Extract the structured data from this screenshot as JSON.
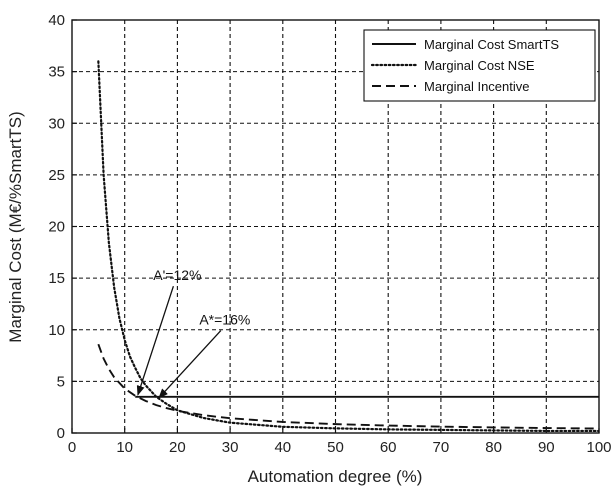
{
  "chart_data": {
    "type": "line",
    "title": "",
    "xlabel": "Automation degree (%)",
    "ylabel": "Marginal Cost (M€/%SmartTS)",
    "xlim": [
      0,
      100
    ],
    "ylim": [
      0,
      40
    ],
    "xticks": [
      0,
      10,
      20,
      30,
      40,
      50,
      60,
      70,
      80,
      90,
      100
    ],
    "yticks": [
      0,
      5,
      10,
      15,
      20,
      25,
      30,
      35,
      40
    ],
    "grid": true,
    "legend_position": "top-right",
    "series": [
      {
        "name": "Marginal Cost SmartTS",
        "style": "solid",
        "x": [
          12,
          100
        ],
        "y": [
          3.5,
          3.5
        ]
      },
      {
        "name": "Marginal Cost NSE",
        "style": "dotted",
        "x": [
          5,
          6,
          7,
          8,
          9,
          10,
          11,
          12,
          13,
          14,
          16,
          18,
          20,
          25,
          30,
          40,
          50,
          60,
          70,
          80,
          90,
          100
        ],
        "y": [
          36,
          25,
          18.4,
          14.1,
          11.1,
          9.0,
          7.4,
          6.3,
          5.3,
          4.6,
          3.5,
          2.8,
          2.2,
          1.45,
          1.0,
          0.6,
          0.45,
          0.35,
          0.3,
          0.25,
          0.2,
          0.2
        ]
      },
      {
        "name": "Marginal Incentive",
        "style": "dashed",
        "x": [
          5,
          6,
          7,
          8,
          10,
          12,
          14,
          16,
          18,
          20,
          25,
          30,
          40,
          50,
          60,
          70,
          80,
          90,
          100
        ],
        "y": [
          8.6,
          7.2,
          6.2,
          5.4,
          4.3,
          3.6,
          3.1,
          2.7,
          2.4,
          2.15,
          1.72,
          1.43,
          1.07,
          0.86,
          0.72,
          0.62,
          0.54,
          0.48,
          0.43
        ]
      }
    ],
    "annotations": [
      {
        "text": "A'=12%",
        "label_x": 20,
        "label_y": 14.8,
        "target_x": 12.5,
        "target_y": 3.7
      },
      {
        "text": "A*=16%",
        "label_x": 29,
        "label_y": 10.5,
        "target_x": 16.5,
        "target_y": 3.4
      }
    ],
    "colors": {
      "line": "#111111",
      "grid": "#111111",
      "axis": "#111111"
    }
  }
}
